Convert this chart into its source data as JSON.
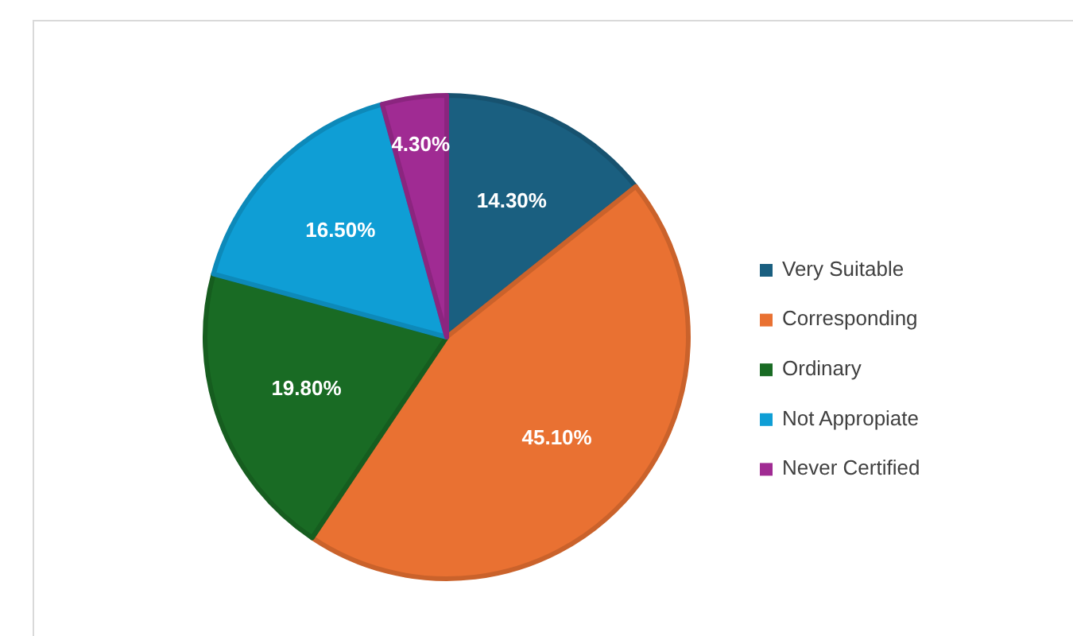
{
  "chart_data": {
    "type": "pie",
    "categories": [
      "Very Suitable",
      "Corresponding",
      "Ordinary",
      "Not Appropiate",
      "Never Certified"
    ],
    "values": [
      14.3,
      45.1,
      19.8,
      16.5,
      4.3
    ],
    "colors": [
      "#1a5f80",
      "#e97132",
      "#196b24",
      "#0f9ed5",
      "#a02b93"
    ],
    "value_labels": [
      "14.30%",
      "45.10%",
      "19.80%",
      "16.50%",
      "4.30%"
    ],
    "legend": "right"
  }
}
